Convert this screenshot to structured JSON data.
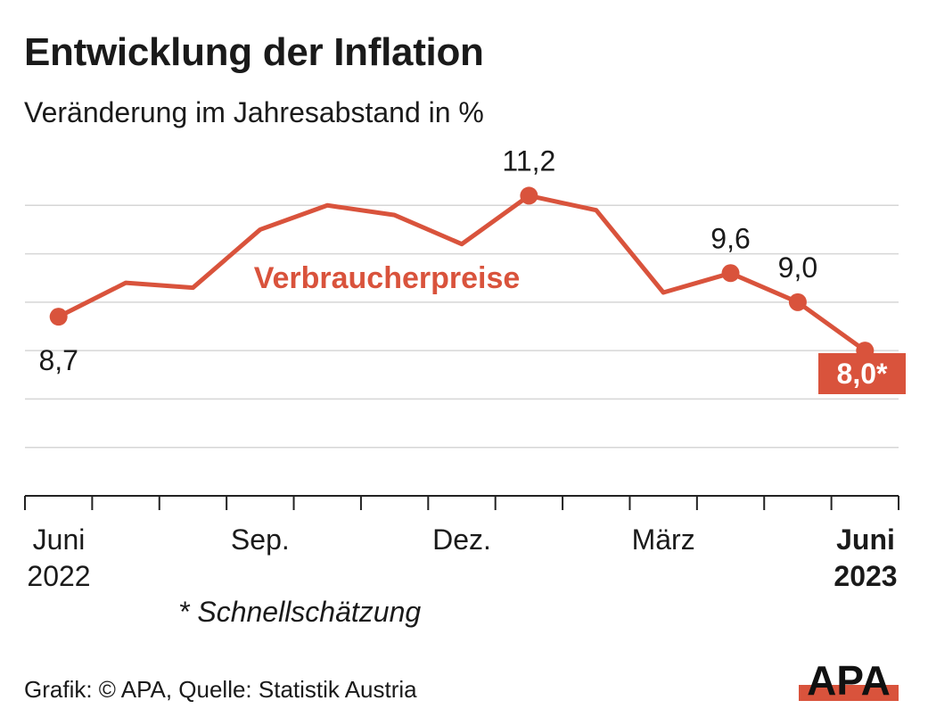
{
  "header": {
    "title": "Entwicklung der Inflation",
    "subtitle": "Veränderung im Jahresabstand in %"
  },
  "chart_data": {
    "type": "line",
    "title": "Entwicklung der Inflation",
    "subtitle": "Veränderung im Jahresabstand in %",
    "series": [
      {
        "name": "Verbraucherpreise",
        "color": "#d9533c",
        "x": [
          "2022-06",
          "2022-07",
          "2022-08",
          "2022-09",
          "2022-10",
          "2022-11",
          "2022-12",
          "2023-01",
          "2023-02",
          "2023-03",
          "2023-04",
          "2023-05",
          "2023-06"
        ],
        "values": [
          8.7,
          9.4,
          9.3,
          10.5,
          11.0,
          10.8,
          10.2,
          11.2,
          10.9,
          9.2,
          9.6,
          9.0,
          8.0
        ]
      }
    ],
    "annotations": [
      {
        "index": 0,
        "label": "8,7",
        "dot": true
      },
      {
        "index": 7,
        "label": "11,2",
        "dot": true
      },
      {
        "index": 10,
        "label": "9,6",
        "dot": true
      },
      {
        "index": 11,
        "label": "9,0",
        "dot": true
      },
      {
        "index": 12,
        "label": "8,0*",
        "dot": true,
        "highlight": true
      }
    ],
    "series_label": "Verbraucherpreise",
    "x_tick_labels": [
      {
        "index": 0,
        "line1": "Juni",
        "line2": "2022",
        "bold": false
      },
      {
        "index": 3,
        "line1": "Sep.",
        "line2": "",
        "bold": false
      },
      {
        "index": 6,
        "line1": "Dez.",
        "line2": "",
        "bold": false
      },
      {
        "index": 9,
        "line1": "März",
        "line2": "",
        "bold": false
      },
      {
        "index": 12,
        "line1": "Juni",
        "line2": "2023",
        "bold": true
      }
    ],
    "ylim": [
      5.0,
      12.0
    ],
    "grid_values": [
      6,
      7,
      8,
      9,
      10,
      11
    ],
    "xlabel": "",
    "ylabel": "",
    "grid": true
  },
  "footer": {
    "footnote": "* Schnellschätzung",
    "source": "Grafik: © APA, Quelle: Statistik Austria",
    "logo_text": "APA"
  }
}
